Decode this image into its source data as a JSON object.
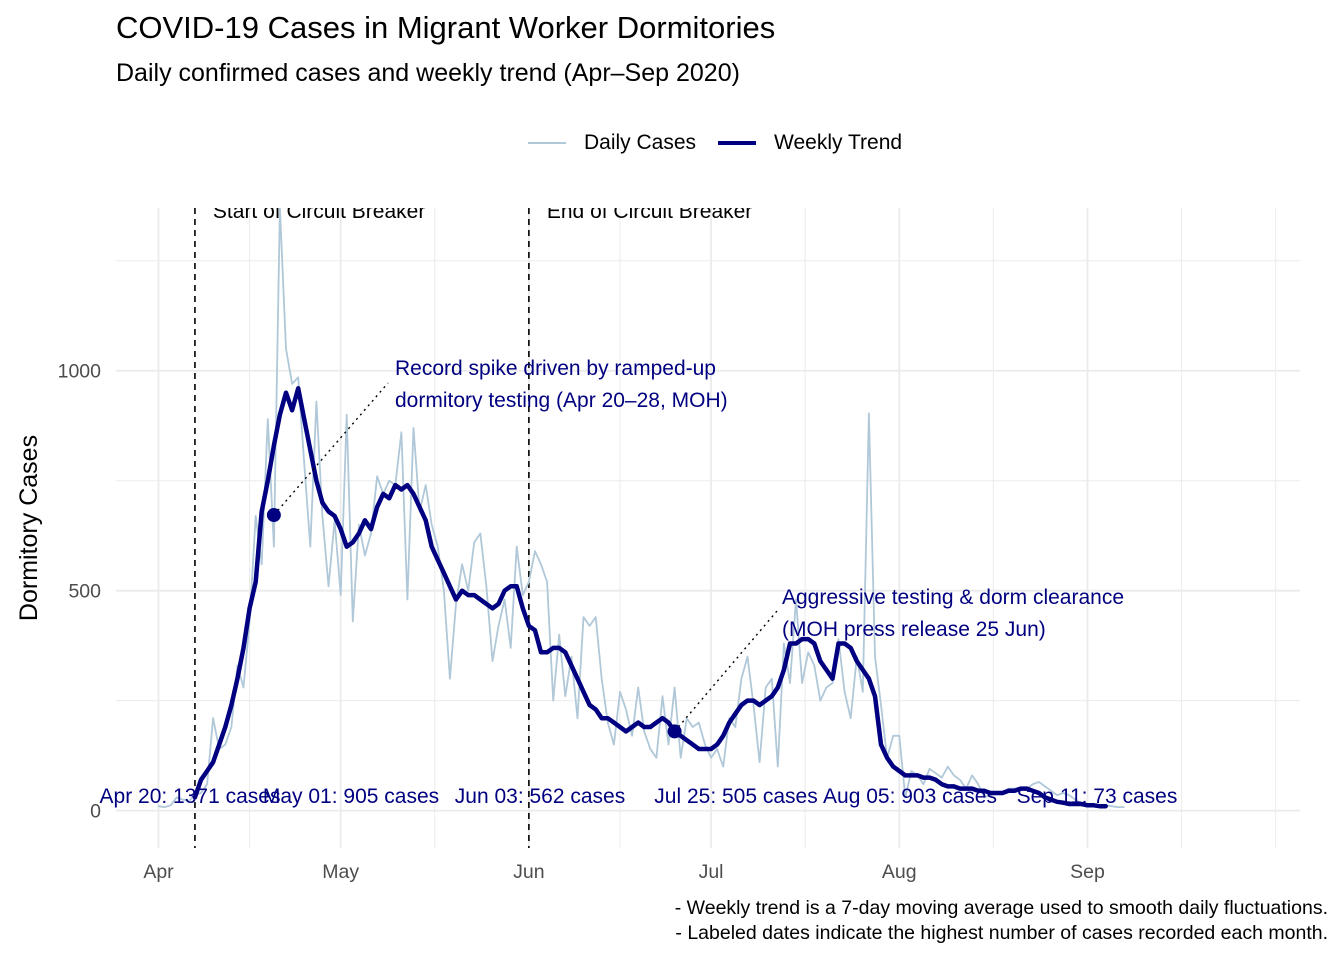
{
  "chart_data": {
    "type": "line",
    "title": "COVID-19 Cases in Migrant Worker Dormitories",
    "subtitle": "Daily confirmed cases and weekly trend (Apr–Sep 2020)",
    "xlabel": "",
    "ylabel": "Dormitory Cases",
    "x_start": "2020-04-01",
    "x_end": "2020-09-30",
    "xlim": [
      "2020-03-25",
      "2020-10-06"
    ],
    "ylim": [
      -85,
      1370
    ],
    "yticks": [
      0,
      500,
      1000
    ],
    "xticks": [
      {
        "date": "2020-04-01",
        "label": "Apr"
      },
      {
        "date": "2020-05-01",
        "label": "May"
      },
      {
        "date": "2020-06-01",
        "label": "Jun"
      },
      {
        "date": "2020-07-01",
        "label": "Jul"
      },
      {
        "date": "2020-08-01",
        "label": "Aug"
      },
      {
        "date": "2020-09-01",
        "label": "Sep"
      }
    ],
    "grid": true,
    "legend_position": "top",
    "series": [
      {
        "name": "Daily Cases",
        "color": "#b0c8d8",
        "start": "2020-04-01",
        "values": [
          10,
          8,
          12,
          30,
          25,
          22,
          35,
          40,
          60,
          210,
          140,
          150,
          190,
          330,
          280,
          430,
          670,
          560,
          890,
          600,
          1371,
          1050,
          970,
          985,
          790,
          600,
          930,
          670,
          510,
          660,
          490,
          900,
          430,
          650,
          580,
          630,
          760,
          720,
          750,
          740,
          860,
          480,
          870,
          680,
          740,
          650,
          600,
          500,
          300,
          470,
          560,
          500,
          610,
          630,
          510,
          340,
          420,
          480,
          370,
          600,
          490,
          520,
          590,
          560,
          520,
          250,
          400,
          260,
          350,
          210,
          440,
          420,
          440,
          300,
          200,
          150,
          270,
          230,
          170,
          280,
          180,
          140,
          120,
          260,
          150,
          280,
          120,
          210,
          190,
          200,
          150,
          120,
          140,
          100,
          210,
          190,
          300,
          350,
          240,
          110,
          280,
          300,
          100,
          380,
          290,
          480,
          290,
          360,
          330,
          250,
          280,
          290,
          390,
          270,
          210,
          350,
          270,
          903,
          350,
          240,
          120,
          170,
          170,
          30,
          90,
          80,
          60,
          95,
          85,
          75,
          100,
          80,
          70,
          50,
          80,
          60,
          30,
          35,
          40,
          40,
          50,
          50,
          50,
          50,
          60,
          65,
          55,
          45,
          35,
          40,
          35,
          25,
          15,
          12,
          15,
          10,
          12,
          10,
          8,
          8
        ]
      },
      {
        "name": "Weekly Trend",
        "color": "#000080",
        "start": "2020-04-07",
        "values": [
          30,
          70,
          90,
          110,
          150,
          190,
          240,
          300,
          370,
          460,
          520,
          680,
          750,
          830,
          900,
          950,
          910,
          960,
          890,
          820,
          750,
          700,
          680,
          670,
          640,
          600,
          610,
          630,
          660,
          640,
          690,
          720,
          710,
          740,
          730,
          740,
          720,
          690,
          660,
          600,
          570,
          540,
          510,
          480,
          500,
          490,
          490,
          480,
          470,
          460,
          470,
          500,
          510,
          510,
          460,
          420,
          410,
          360,
          360,
          370,
          370,
          360,
          330,
          300,
          270,
          240,
          230,
          210,
          210,
          200,
          190,
          180,
          190,
          200,
          190,
          190,
          200,
          210,
          200,
          180,
          170,
          160,
          150,
          140,
          140,
          140,
          150,
          170,
          200,
          220,
          240,
          250,
          250,
          240,
          250,
          260,
          280,
          320,
          380,
          380,
          390,
          390,
          380,
          340,
          320,
          300,
          380,
          380,
          370,
          340,
          320,
          300,
          260,
          150,
          120,
          100,
          90,
          80,
          80,
          80,
          75,
          75,
          70,
          60,
          55,
          55,
          50,
          50,
          50,
          45,
          45,
          40,
          40,
          40,
          45,
          45,
          50,
          50,
          45,
          40,
          30,
          25,
          20,
          18,
          15,
          15,
          15,
          12,
          12,
          10,
          10
        ]
      }
    ],
    "vlines": [
      {
        "date": "2020-04-07",
        "label": "Start of Circuit Breaker"
      },
      {
        "date": "2020-06-01",
        "label": "End of Circuit Breaker"
      }
    ],
    "highlight_points": [
      {
        "date": "2020-04-20",
        "value": 672
      },
      {
        "date": "2020-06-25",
        "value": 180
      }
    ],
    "annotations": [
      {
        "date": "2020-04-20",
        "value": 672,
        "text_lines": [
          "Record spike driven by ramped-up",
          "dormitory testing (Apr 20–28, MOH)"
        ]
      },
      {
        "date": "2020-06-25",
        "value": 180,
        "text_lines": [
          "Aggressive testing & dorm clearance",
          "(MOH press release 25 Jun)"
        ]
      }
    ],
    "monthly_peak_labels": [
      {
        "date": "2020-04-20",
        "value": 1371,
        "label": "Apr 20: 1371 cases"
      },
      {
        "date": "2020-05-01",
        "value": 905,
        "label": "May 01: 905 cases"
      },
      {
        "date": "2020-06-03",
        "value": 562,
        "label": "Jun 03: 562 cases"
      },
      {
        "date": "2020-07-25",
        "value": 505,
        "label": "Jul 25: 505 cases"
      },
      {
        "date": "2020-08-05",
        "value": 903,
        "label": "Aug 05: 903 cases"
      },
      {
        "date": "2020-09-11",
        "value": 73,
        "label": "Sep 11: 73 cases"
      }
    ]
  },
  "caption": {
    "line1": "- Weekly trend is a 7-day moving average used to smooth daily fluctuations.",
    "line2": "- Labeled dates indicate the highest number of cases recorded each month."
  }
}
